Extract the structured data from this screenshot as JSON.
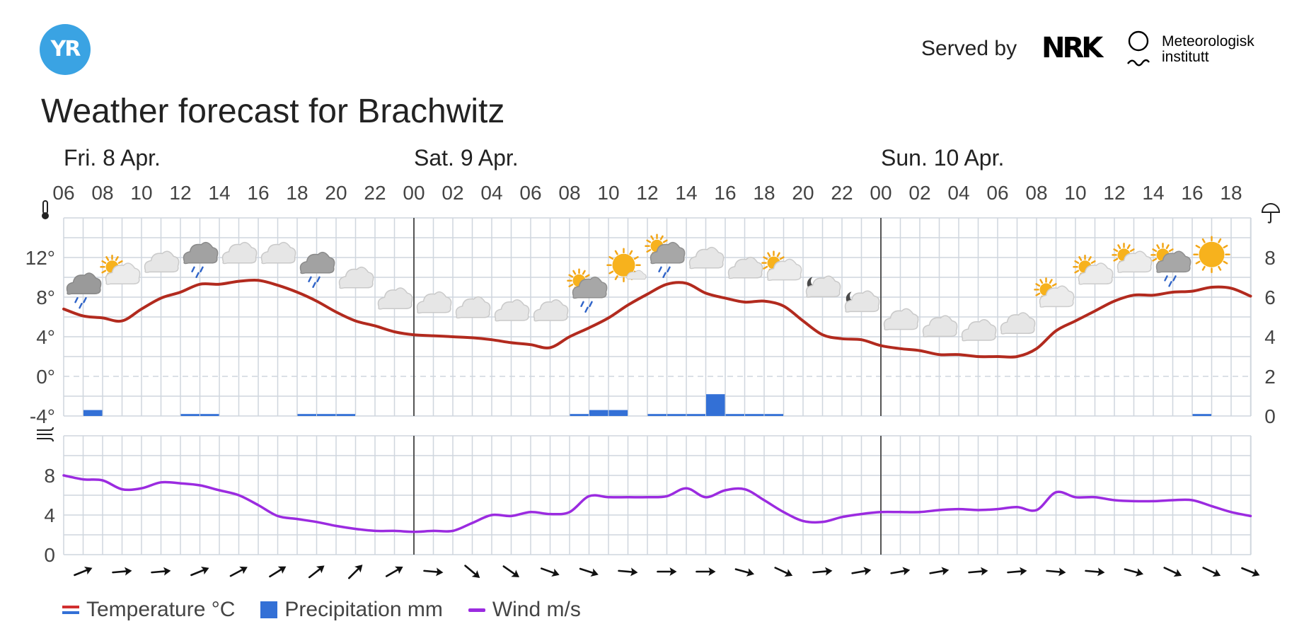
{
  "header": {
    "logo_text": "YR",
    "served_by": "Served by",
    "nrk_logo_text": "NRK",
    "met_line1": "Meteorologisk",
    "met_line2": "institutt"
  },
  "title": "Weather forecast for Brachwitz",
  "legend": {
    "temperature": "Temperature °C",
    "precipitation": "Precipitation mm",
    "wind": "Wind m/s"
  },
  "colors": {
    "temperature": "#b22a1e",
    "precipitation": "#3370d6",
    "wind": "#9b2be0",
    "grid": "#cfd6de",
    "logo": "#3aa3e3"
  },
  "chart_data": {
    "type": "line",
    "day_labels": [
      {
        "label": "Fri. 8 Apr.",
        "at_hour_index": 0
      },
      {
        "label": "Sat. 9 Apr.",
        "at_hour_index": 18
      },
      {
        "label": "Sun. 10 Apr.",
        "at_hour_index": 42
      }
    ],
    "day_dividers_at": [
      18,
      42
    ],
    "x_tick_labels": [
      "06",
      "08",
      "10",
      "12",
      "14",
      "16",
      "18",
      "20",
      "22",
      "00",
      "02",
      "04",
      "06",
      "08",
      "10",
      "12",
      "14",
      "16",
      "18",
      "20",
      "22",
      "00",
      "02",
      "04",
      "06",
      "08",
      "10",
      "12",
      "14",
      "16",
      "18"
    ],
    "temperature": {
      "unit": "°C",
      "ylim": [
        -4,
        16
      ],
      "ticks": [
        "12°",
        "8°",
        "4°",
        "0°",
        "-4°"
      ],
      "tick_values": [
        12,
        8,
        4,
        0,
        -4
      ],
      "values": [
        6.8,
        6.1,
        5.9,
        5.6,
        6.8,
        7.9,
        8.5,
        9.3,
        9.3,
        9.6,
        9.7,
        9.2,
        8.5,
        7.6,
        6.5,
        5.6,
        5.1,
        4.5,
        4.2,
        4.1,
        4.0,
        3.9,
        3.7,
        3.4,
        3.2,
        2.9,
        4.0,
        4.9,
        5.9,
        7.2,
        8.3,
        9.3,
        9.4,
        8.4,
        7.9,
        7.5,
        7.6,
        7.1,
        5.6,
        4.2,
        3.8,
        3.7,
        3.1,
        2.8,
        2.6,
        2.2,
        2.2,
        2.0,
        2.0,
        2.0,
        2.8,
        4.6,
        5.6,
        6.6,
        7.6,
        8.2,
        8.2,
        8.5,
        8.6,
        9.0,
        8.9,
        8.1
      ]
    },
    "precipitation": {
      "unit": "mm",
      "ylim": [
        0,
        10
      ],
      "ticks": [
        "8",
        "6",
        "4",
        "2",
        "0"
      ],
      "tick_values": [
        8,
        6,
        4,
        2,
        0
      ],
      "values": [
        0,
        0.3,
        0,
        0,
        0,
        0,
        0.1,
        0.1,
        0,
        0,
        0,
        0,
        0.1,
        0.1,
        0.1,
        0,
        0,
        0,
        0,
        0,
        0,
        0,
        0,
        0,
        0,
        0,
        0.1,
        0.3,
        0.3,
        0,
        0.1,
        0.1,
        0.1,
        1.1,
        0.1,
        0.1,
        0.1,
        0,
        0,
        0,
        0,
        0,
        0,
        0,
        0,
        0,
        0,
        0,
        0,
        0,
        0,
        0,
        0,
        0,
        0,
        0,
        0,
        0,
        0.1,
        0,
        0,
        0
      ]
    },
    "wind": {
      "unit": "m/s",
      "ylim": [
        0,
        12
      ],
      "ticks": [
        "8",
        "4",
        "0"
      ],
      "tick_values": [
        8,
        4,
        0
      ],
      "speed": [
        8.0,
        7.6,
        7.5,
        6.6,
        6.7,
        7.3,
        7.2,
        7.0,
        6.5,
        6.0,
        5.0,
        3.9,
        3.6,
        3.3,
        2.9,
        2.6,
        2.4,
        2.4,
        2.3,
        2.4,
        2.4,
        3.2,
        4.0,
        3.9,
        4.3,
        4.1,
        4.3,
        5.9,
        5.8,
        5.8,
        5.8,
        5.9,
        6.7,
        5.8,
        6.5,
        6.6,
        5.5,
        4.3,
        3.4,
        3.3,
        3.8,
        4.1,
        4.3,
        4.3,
        4.3,
        4.5,
        4.6,
        4.5,
        4.6,
        4.8,
        4.5,
        6.3,
        5.8,
        5.8,
        5.5,
        5.4,
        5.4,
        5.5,
        5.5,
        4.9,
        4.3,
        3.9
      ],
      "arrow_directions_deg": [
        -22,
        -5,
        -5,
        -22,
        -28,
        -32,
        -38,
        -45,
        -30,
        5,
        40,
        35,
        20,
        18,
        5,
        0,
        0,
        15,
        25,
        -5,
        -10,
        -10,
        -10,
        -5,
        -5,
        5,
        5,
        15,
        25,
        25,
        22
      ]
    },
    "weather_icons": [
      {
        "hour_index": 1,
        "icon": "rain-cloud",
        "temp": 9.2
      },
      {
        "hour_index": 3,
        "icon": "partly-cloudy",
        "temp": 10.2
      },
      {
        "hour_index": 5,
        "icon": "cloud",
        "temp": 11.4
      },
      {
        "hour_index": 7,
        "icon": "rain-cloud-dark",
        "temp": 12.3
      },
      {
        "hour_index": 9,
        "icon": "cloud",
        "temp": 12.3
      },
      {
        "hour_index": 11,
        "icon": "cloud",
        "temp": 12.3
      },
      {
        "hour_index": 13,
        "icon": "rain-cloud-dark",
        "temp": 11.3
      },
      {
        "hour_index": 15,
        "icon": "cloud",
        "temp": 9.8
      },
      {
        "hour_index": 17,
        "icon": "cloud",
        "temp": 7.7
      },
      {
        "hour_index": 19,
        "icon": "cloud",
        "temp": 7.3
      },
      {
        "hour_index": 21,
        "icon": "cloud",
        "temp": 6.8
      },
      {
        "hour_index": 23,
        "icon": "cloud",
        "temp": 6.5
      },
      {
        "hour_index": 25,
        "icon": "cloud",
        "temp": 6.5
      },
      {
        "hour_index": 27,
        "icon": "rain-cloud-sun",
        "temp": 8.8
      },
      {
        "hour_index": 29,
        "icon": "sun-cloud",
        "temp": 10.8
      },
      {
        "hour_index": 31,
        "icon": "rain-cloud-sun",
        "temp": 12.3
      },
      {
        "hour_index": 33,
        "icon": "cloud",
        "temp": 11.8
      },
      {
        "hour_index": 35,
        "icon": "cloud",
        "temp": 10.8
      },
      {
        "hour_index": 37,
        "icon": "partly-cloudy",
        "temp": 10.6
      },
      {
        "hour_index": 39,
        "icon": "cloud-moon",
        "temp": 8.9
      },
      {
        "hour_index": 41,
        "icon": "cloud-moon",
        "temp": 7.4
      },
      {
        "hour_index": 43,
        "icon": "cloud",
        "temp": 5.6
      },
      {
        "hour_index": 45,
        "icon": "cloud",
        "temp": 4.9
      },
      {
        "hour_index": 47,
        "icon": "cloud",
        "temp": 4.5
      },
      {
        "hour_index": 49,
        "icon": "cloud",
        "temp": 5.2
      },
      {
        "hour_index": 51,
        "icon": "partly-cloudy",
        "temp": 7.9
      },
      {
        "hour_index": 53,
        "icon": "partly-cloudy",
        "temp": 10.2
      },
      {
        "hour_index": 55,
        "icon": "partly-cloudy",
        "temp": 11.4
      },
      {
        "hour_index": 57,
        "icon": "rain-cloud-sun",
        "temp": 11.4
      },
      {
        "hour_index": 59,
        "icon": "sun",
        "temp": 12.3
      }
    ]
  }
}
